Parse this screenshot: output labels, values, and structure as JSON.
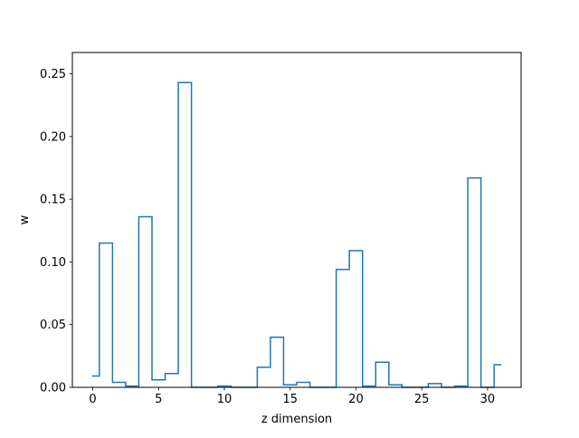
{
  "chart_data": {
    "type": "line",
    "drawstyle": "steps-mid",
    "title": "",
    "xlabel": "z dimension",
    "ylabel": "w",
    "xlim": [
      -1.55,
      32.55
    ],
    "ylim": [
      0,
      0.267
    ],
    "xticks": [
      0,
      5,
      10,
      15,
      20,
      25,
      30
    ],
    "yticks": [
      0.0,
      0.05,
      0.1,
      0.15,
      0.2,
      0.25
    ],
    "ytick_labels": [
      "0.00",
      "0.05",
      "0.10",
      "0.15",
      "0.20",
      "0.25"
    ],
    "grid": false,
    "legend": "none",
    "line_color": "#1f77b4",
    "series": [
      {
        "x": [
          0,
          1,
          2,
          3,
          4,
          5,
          6,
          7,
          8,
          9,
          10,
          11,
          12,
          13,
          14,
          15,
          16,
          17,
          18,
          19,
          20,
          21,
          22,
          23,
          24,
          25,
          26,
          27,
          28,
          29,
          30,
          31
        ],
        "values": [
          0.009,
          0.115,
          0.004,
          0.001,
          0.136,
          0.006,
          0.011,
          0.243,
          0.0,
          0.0,
          0.001,
          0.0,
          0.0,
          0.016,
          0.04,
          0.002,
          0.004,
          0.0,
          0.0,
          0.094,
          0.109,
          0.001,
          0.02,
          0.002,
          0.0,
          0.0,
          0.003,
          0.0,
          0.001,
          0.167,
          0.0,
          0.018
        ]
      }
    ]
  }
}
